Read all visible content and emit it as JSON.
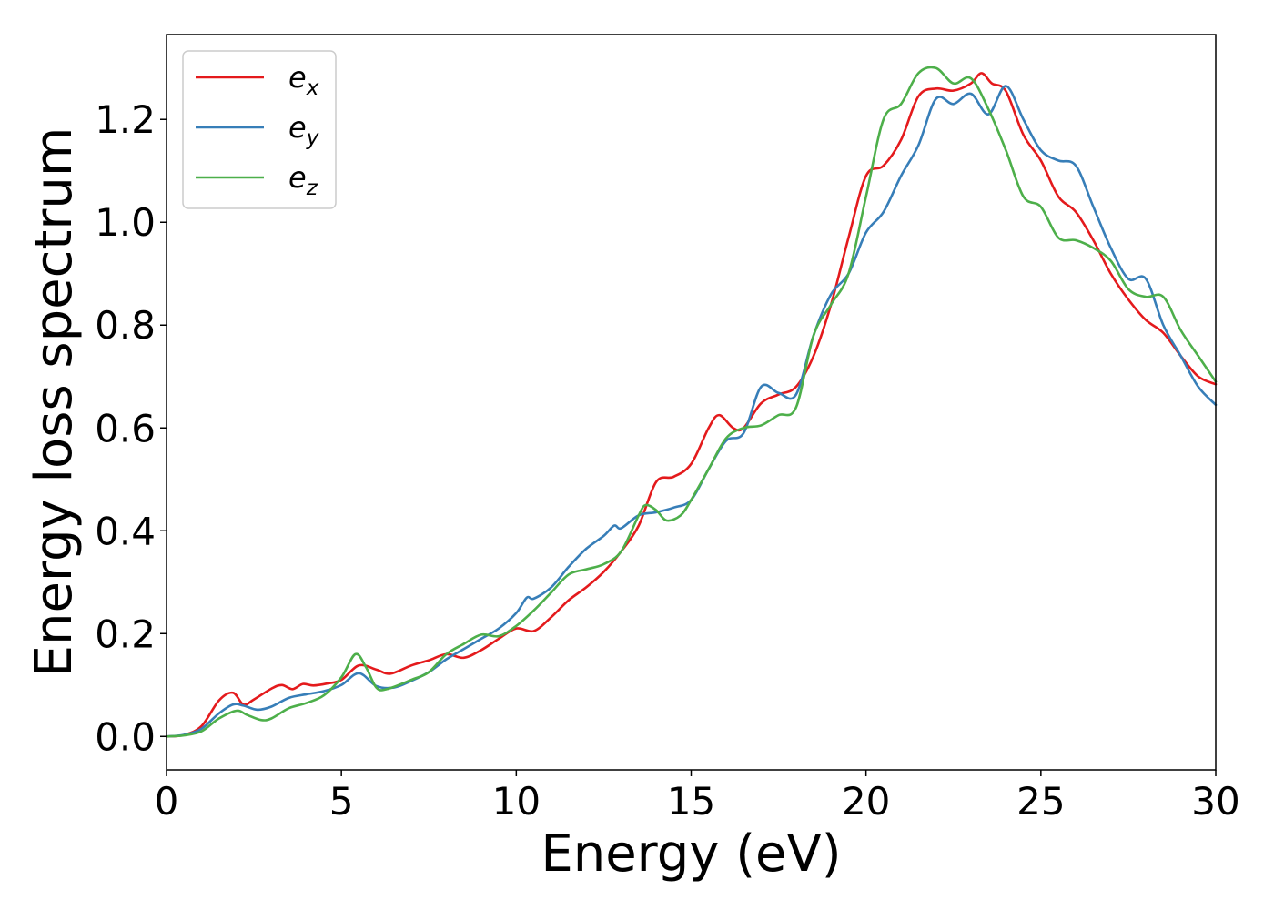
{
  "chart_data": {
    "type": "line",
    "title": "",
    "xlabel": "Energy (eV)",
    "ylabel": "Energy loss spectrum",
    "xlim": [
      0,
      30
    ],
    "ylim": [
      -0.065,
      1.365
    ],
    "xticks": [
      0,
      5,
      10,
      15,
      20,
      25,
      30
    ],
    "xtick_labels": [
      "0",
      "5",
      "10",
      "15",
      "20",
      "25",
      "30"
    ],
    "yticks": [
      0.0,
      0.2,
      0.4,
      0.6,
      0.8,
      1.0,
      1.2
    ],
    "ytick_labels": [
      "0.0",
      "0.2",
      "0.4",
      "0.6",
      "0.8",
      "1.0",
      "1.2"
    ],
    "grid": false,
    "legend_position": "top-left",
    "series": [
      {
        "name": "e_x",
        "label_base": "e",
        "label_sub": "x",
        "color": "#e41a1c",
        "x": [
          0,
          0.5,
          1,
          1.5,
          1.9,
          2.2,
          2.5,
          3,
          3.3,
          3.6,
          3.9,
          4.2,
          4.6,
          5,
          5.5,
          6,
          6.4,
          7,
          7.5,
          8,
          8.5,
          9,
          9.5,
          10,
          10.5,
          11,
          11.5,
          12,
          12.5,
          13,
          13.5,
          14,
          14.5,
          15,
          15.5,
          15.8,
          16.2,
          16.5,
          17,
          17.5,
          18,
          18.5,
          19,
          19.5,
          20,
          20.5,
          21,
          21.5,
          22,
          22.5,
          23,
          23.3,
          23.6,
          24,
          24.5,
          25,
          25.5,
          26,
          26.5,
          27,
          27.5,
          28,
          28.5,
          29,
          29.5,
          30
        ],
        "values": [
          0,
          0.003,
          0.02,
          0.07,
          0.085,
          0.062,
          0.072,
          0.093,
          0.1,
          0.092,
          0.102,
          0.099,
          0.103,
          0.11,
          0.138,
          0.13,
          0.122,
          0.138,
          0.148,
          0.16,
          0.153,
          0.168,
          0.19,
          0.21,
          0.205,
          0.232,
          0.265,
          0.29,
          0.32,
          0.36,
          0.41,
          0.495,
          0.505,
          0.53,
          0.6,
          0.625,
          0.6,
          0.6,
          0.648,
          0.665,
          0.68,
          0.74,
          0.84,
          0.97,
          1.09,
          1.11,
          1.16,
          1.245,
          1.26,
          1.256,
          1.27,
          1.29,
          1.27,
          1.255,
          1.17,
          1.12,
          1.05,
          1.02,
          0.965,
          0.9,
          0.85,
          0.81,
          0.785,
          0.74,
          0.7,
          0.685
        ]
      },
      {
        "name": "e_y",
        "label_base": "e",
        "label_sub": "y",
        "color": "#377eb8",
        "x": [
          0,
          0.5,
          1,
          1.5,
          1.9,
          2.2,
          2.6,
          3,
          3.5,
          4,
          4.5,
          5,
          5.5,
          6,
          6.5,
          7,
          7.5,
          8,
          8.5,
          9,
          9.5,
          10,
          10.3,
          10.5,
          11,
          11.5,
          12,
          12.5,
          12.8,
          13,
          13.5,
          14,
          14.5,
          15,
          15.5,
          16,
          16.5,
          17,
          17.5,
          18,
          18.5,
          19,
          19.5,
          20,
          20.5,
          21,
          21.5,
          22,
          22.5,
          23,
          23.5,
          24,
          24.5,
          25,
          25.5,
          26,
          26.5,
          27,
          27.5,
          28,
          28.5,
          29,
          29.5,
          30
        ],
        "values": [
          0,
          0.003,
          0.015,
          0.045,
          0.062,
          0.06,
          0.052,
          0.058,
          0.075,
          0.082,
          0.088,
          0.1,
          0.123,
          0.098,
          0.095,
          0.108,
          0.125,
          0.15,
          0.17,
          0.19,
          0.21,
          0.24,
          0.27,
          0.268,
          0.29,
          0.33,
          0.365,
          0.39,
          0.41,
          0.405,
          0.43,
          0.436,
          0.445,
          0.46,
          0.52,
          0.575,
          0.59,
          0.68,
          0.668,
          0.665,
          0.78,
          0.86,
          0.9,
          0.98,
          1.02,
          1.09,
          1.15,
          1.24,
          1.23,
          1.25,
          1.21,
          1.265,
          1.2,
          1.14,
          1.12,
          1.11,
          1.03,
          0.95,
          0.89,
          0.89,
          0.8,
          0.74,
          0.68,
          0.645
        ]
      },
      {
        "name": "e_z",
        "label_base": "e",
        "label_sub": "z",
        "color": "#4daf4a",
        "x": [
          0,
          0.5,
          1,
          1.5,
          2,
          2.3,
          2.7,
          3,
          3.5,
          4,
          4.5,
          5,
          5.4,
          5.7,
          6,
          6.3,
          7,
          7.5,
          8,
          8.5,
          9,
          9.5,
          10,
          10.5,
          11,
          11.5,
          12,
          12.5,
          13,
          13.5,
          13.7,
          14,
          14.3,
          14.7,
          15,
          15.5,
          16,
          16.5,
          17,
          17.5,
          18,
          18.5,
          19,
          19.5,
          20,
          20.5,
          21,
          21.5,
          22,
          22.5,
          23,
          23.5,
          24,
          24.5,
          25,
          25.5,
          26,
          26.5,
          27,
          27.5,
          28,
          28.5,
          29,
          29.5,
          30
        ],
        "values": [
          0,
          0.002,
          0.01,
          0.035,
          0.05,
          0.042,
          0.032,
          0.035,
          0.055,
          0.065,
          0.08,
          0.115,
          0.16,
          0.135,
          0.095,
          0.092,
          0.11,
          0.125,
          0.16,
          0.18,
          0.198,
          0.195,
          0.215,
          0.245,
          0.28,
          0.315,
          0.325,
          0.335,
          0.36,
          0.43,
          0.45,
          0.44,
          0.42,
          0.43,
          0.46,
          0.52,
          0.58,
          0.6,
          0.605,
          0.625,
          0.64,
          0.78,
          0.84,
          0.9,
          1.05,
          1.2,
          1.23,
          1.29,
          1.3,
          1.27,
          1.28,
          1.22,
          1.14,
          1.05,
          1.03,
          0.97,
          0.965,
          0.95,
          0.925,
          0.87,
          0.855,
          0.855,
          0.79,
          0.74,
          0.69
        ]
      }
    ]
  }
}
